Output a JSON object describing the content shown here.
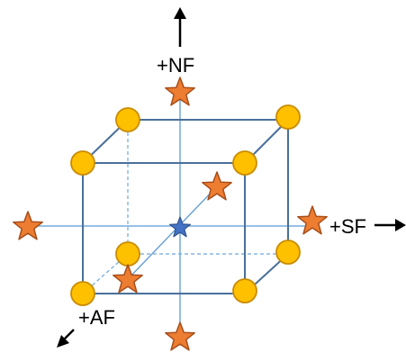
{
  "labels": {
    "nf": "+NF",
    "sf": "+SF",
    "af": "+AF"
  },
  "colors": {
    "cube_edge": "#4a709a",
    "axis_line": "#5b9bd5",
    "dashed_edge": "#6fa8dc",
    "vertex_fill": "#ffc000",
    "vertex_stroke": "#c98c00",
    "star_fill": "#ed7d31",
    "star_stroke": "#a84e1a",
    "center_star_fill": "#4472c4",
    "center_star_stroke": "#2f528f",
    "arrow": "#000000"
  },
  "shapes": {
    "vertex": "circle",
    "axis_point": "star",
    "center": "star"
  }
}
